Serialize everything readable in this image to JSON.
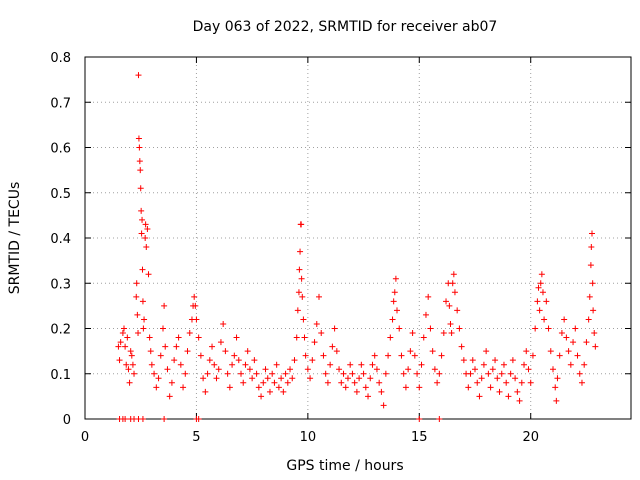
{
  "chart_data": {
    "type": "scatter",
    "title": "Day 063 of 2022, SRMTID for receiver ab07",
    "xlabel": "GPS time / hours",
    "ylabel": "SRMTID / TECUs",
    "xlim": [
      0,
      24.5
    ],
    "ylim": [
      0,
      0.8
    ],
    "xticks": [
      0,
      5,
      10,
      15,
      20
    ],
    "xtick_labels": [
      "0",
      "5",
      "10",
      "15",
      "20"
    ],
    "yticks": [
      0,
      0.1,
      0.2,
      0.3,
      0.4,
      0.5,
      0.6,
      0.7,
      0.8
    ],
    "ytick_labels": [
      "0",
      "0.1",
      "0.2",
      "0.3",
      "0.4",
      "0.5",
      "0.6",
      "0.7",
      "0.8"
    ],
    "grid": true,
    "marker": "+",
    "series": [
      {
        "name": "SRMTID",
        "color": "#ff0000",
        "points": [
          [
            1.55,
            0.0
          ],
          [
            1.7,
            0.0
          ],
          [
            1.8,
            0.0
          ],
          [
            2.05,
            0.0
          ],
          [
            2.2,
            0.0
          ],
          [
            2.4,
            0.0
          ],
          [
            2.6,
            0.0
          ],
          [
            3.55,
            0.0
          ],
          [
            5.0,
            0.0
          ],
          [
            5.1,
            0.0
          ],
          [
            15.0,
            0.0
          ],
          [
            15.9,
            0.0
          ],
          [
            1.5,
            0.16
          ],
          [
            1.55,
            0.13
          ],
          [
            1.6,
            0.17
          ],
          [
            1.7,
            0.19
          ],
          [
            1.75,
            0.2
          ],
          [
            1.8,
            0.16
          ],
          [
            1.85,
            0.12
          ],
          [
            1.9,
            0.18
          ],
          [
            1.95,
            0.11
          ],
          [
            2.0,
            0.08
          ],
          [
            2.05,
            0.15
          ],
          [
            2.1,
            0.14
          ],
          [
            2.15,
            0.12
          ],
          [
            2.2,
            0.1
          ],
          [
            2.3,
            0.27
          ],
          [
            2.32,
            0.3
          ],
          [
            2.35,
            0.23
          ],
          [
            2.38,
            0.19
          ],
          [
            2.4,
            0.76
          ],
          [
            2.42,
            0.62
          ],
          [
            2.44,
            0.6
          ],
          [
            2.46,
            0.57
          ],
          [
            2.48,
            0.55
          ],
          [
            2.5,
            0.51
          ],
          [
            2.52,
            0.46
          ],
          [
            2.54,
            0.41
          ],
          [
            2.56,
            0.44
          ],
          [
            2.58,
            0.33
          ],
          [
            2.6,
            0.26
          ],
          [
            2.62,
            0.2
          ],
          [
            2.65,
            0.22
          ],
          [
            2.7,
            0.4
          ],
          [
            2.72,
            0.43
          ],
          [
            2.75,
            0.38
          ],
          [
            2.8,
            0.42
          ],
          [
            2.85,
            0.32
          ],
          [
            2.9,
            0.18
          ],
          [
            2.95,
            0.15
          ],
          [
            3.0,
            0.12
          ],
          [
            3.1,
            0.1
          ],
          [
            3.2,
            0.07
          ],
          [
            3.3,
            0.09
          ],
          [
            3.4,
            0.14
          ],
          [
            3.5,
            0.2
          ],
          [
            3.55,
            0.25
          ],
          [
            3.6,
            0.16
          ],
          [
            3.7,
            0.11
          ],
          [
            3.8,
            0.05
          ],
          [
            3.9,
            0.08
          ],
          [
            4.0,
            0.13
          ],
          [
            4.1,
            0.16
          ],
          [
            4.2,
            0.18
          ],
          [
            4.3,
            0.12
          ],
          [
            4.4,
            0.07
          ],
          [
            4.5,
            0.1
          ],
          [
            4.6,
            0.15
          ],
          [
            4.7,
            0.19
          ],
          [
            4.8,
            0.22
          ],
          [
            4.85,
            0.25
          ],
          [
            4.9,
            0.27
          ],
          [
            4.95,
            0.25
          ],
          [
            5.0,
            0.22
          ],
          [
            5.1,
            0.18
          ],
          [
            5.2,
            0.14
          ],
          [
            5.3,
            0.09
          ],
          [
            5.4,
            0.06
          ],
          [
            5.5,
            0.1
          ],
          [
            5.6,
            0.13
          ],
          [
            5.7,
            0.16
          ],
          [
            5.8,
            0.12
          ],
          [
            5.9,
            0.09
          ],
          [
            6.0,
            0.11
          ],
          [
            6.1,
            0.17
          ],
          [
            6.2,
            0.21
          ],
          [
            6.3,
            0.15
          ],
          [
            6.4,
            0.1
          ],
          [
            6.5,
            0.07
          ],
          [
            6.6,
            0.12
          ],
          [
            6.7,
            0.14
          ],
          [
            6.8,
            0.18
          ],
          [
            6.9,
            0.13
          ],
          [
            7.0,
            0.1
          ],
          [
            7.1,
            0.08
          ],
          [
            7.2,
            0.12
          ],
          [
            7.3,
            0.15
          ],
          [
            7.4,
            0.11
          ],
          [
            7.5,
            0.09
          ],
          [
            7.6,
            0.13
          ],
          [
            7.7,
            0.1
          ],
          [
            7.8,
            0.07
          ],
          [
            7.9,
            0.05
          ],
          [
            8.0,
            0.08
          ],
          [
            8.1,
            0.11
          ],
          [
            8.2,
            0.09
          ],
          [
            8.3,
            0.06
          ],
          [
            8.4,
            0.1
          ],
          [
            8.5,
            0.08
          ],
          [
            8.6,
            0.12
          ],
          [
            8.7,
            0.07
          ],
          [
            8.8,
            0.09
          ],
          [
            8.9,
            0.06
          ],
          [
            9.0,
            0.1
          ],
          [
            9.1,
            0.08
          ],
          [
            9.2,
            0.11
          ],
          [
            9.3,
            0.09
          ],
          [
            9.4,
            0.13
          ],
          [
            9.5,
            0.18
          ],
          [
            9.55,
            0.24
          ],
          [
            9.6,
            0.28
          ],
          [
            9.62,
            0.33
          ],
          [
            9.65,
            0.37
          ],
          [
            9.68,
            0.43
          ],
          [
            9.7,
            0.43
          ],
          [
            9.72,
            0.31
          ],
          [
            9.75,
            0.27
          ],
          [
            9.8,
            0.22
          ],
          [
            9.85,
            0.18
          ],
          [
            9.9,
            0.14
          ],
          [
            10.0,
            0.11
          ],
          [
            10.1,
            0.09
          ],
          [
            10.2,
            0.13
          ],
          [
            10.3,
            0.17
          ],
          [
            10.4,
            0.21
          ],
          [
            10.5,
            0.27
          ],
          [
            10.6,
            0.19
          ],
          [
            10.7,
            0.14
          ],
          [
            10.8,
            0.1
          ],
          [
            10.9,
            0.08
          ],
          [
            11.0,
            0.12
          ],
          [
            11.1,
            0.16
          ],
          [
            11.2,
            0.2
          ],
          [
            11.3,
            0.15
          ],
          [
            11.4,
            0.11
          ],
          [
            11.5,
            0.08
          ],
          [
            11.6,
            0.1
          ],
          [
            11.7,
            0.07
          ],
          [
            11.8,
            0.09
          ],
          [
            11.9,
            0.12
          ],
          [
            12.0,
            0.1
          ],
          [
            12.1,
            0.08
          ],
          [
            12.2,
            0.06
          ],
          [
            12.3,
            0.09
          ],
          [
            12.4,
            0.12
          ],
          [
            12.5,
            0.1
          ],
          [
            12.6,
            0.07
          ],
          [
            12.7,
            0.05
          ],
          [
            12.8,
            0.09
          ],
          [
            12.9,
            0.12
          ],
          [
            13.0,
            0.14
          ],
          [
            13.1,
            0.11
          ],
          [
            13.2,
            0.08
          ],
          [
            13.3,
            0.06
          ],
          [
            13.4,
            0.03
          ],
          [
            13.5,
            0.1
          ],
          [
            13.6,
            0.14
          ],
          [
            13.7,
            0.18
          ],
          [
            13.8,
            0.22
          ],
          [
            13.85,
            0.26
          ],
          [
            13.9,
            0.28
          ],
          [
            13.95,
            0.31
          ],
          [
            14.0,
            0.24
          ],
          [
            14.1,
            0.2
          ],
          [
            14.2,
            0.14
          ],
          [
            14.3,
            0.1
          ],
          [
            14.4,
            0.07
          ],
          [
            14.5,
            0.11
          ],
          [
            14.6,
            0.15
          ],
          [
            14.7,
            0.19
          ],
          [
            14.8,
            0.14
          ],
          [
            14.9,
            0.1
          ],
          [
            15.0,
            0.07
          ],
          [
            15.1,
            0.12
          ],
          [
            15.2,
            0.18
          ],
          [
            15.3,
            0.23
          ],
          [
            15.4,
            0.27
          ],
          [
            15.5,
            0.2
          ],
          [
            15.6,
            0.15
          ],
          [
            15.7,
            0.11
          ],
          [
            15.8,
            0.08
          ],
          [
            15.9,
            0.1
          ],
          [
            16.0,
            0.14
          ],
          [
            16.1,
            0.19
          ],
          [
            16.2,
            0.26
          ],
          [
            16.3,
            0.3
          ],
          [
            16.35,
            0.25
          ],
          [
            16.4,
            0.21
          ],
          [
            16.45,
            0.19
          ],
          [
            16.5,
            0.3
          ],
          [
            16.55,
            0.32
          ],
          [
            16.6,
            0.28
          ],
          [
            16.7,
            0.24
          ],
          [
            16.8,
            0.2
          ],
          [
            16.9,
            0.16
          ],
          [
            17.0,
            0.13
          ],
          [
            17.1,
            0.1
          ],
          [
            17.2,
            0.07
          ],
          [
            17.3,
            0.1
          ],
          [
            17.4,
            0.13
          ],
          [
            17.5,
            0.11
          ],
          [
            17.6,
            0.08
          ],
          [
            17.7,
            0.05
          ],
          [
            17.8,
            0.09
          ],
          [
            17.9,
            0.12
          ],
          [
            18.0,
            0.15
          ],
          [
            18.1,
            0.1
          ],
          [
            18.2,
            0.07
          ],
          [
            18.3,
            0.11
          ],
          [
            18.4,
            0.13
          ],
          [
            18.5,
            0.09
          ],
          [
            18.6,
            0.06
          ],
          [
            18.7,
            0.1
          ],
          [
            18.8,
            0.12
          ],
          [
            18.9,
            0.08
          ],
          [
            19.0,
            0.05
          ],
          [
            19.1,
            0.1
          ],
          [
            19.2,
            0.13
          ],
          [
            19.3,
            0.09
          ],
          [
            19.4,
            0.06
          ],
          [
            19.5,
            0.04
          ],
          [
            19.6,
            0.08
          ],
          [
            19.7,
            0.12
          ],
          [
            19.8,
            0.15
          ],
          [
            19.9,
            0.11
          ],
          [
            20.0,
            0.08
          ],
          [
            20.1,
            0.14
          ],
          [
            20.2,
            0.2
          ],
          [
            20.3,
            0.26
          ],
          [
            20.35,
            0.29
          ],
          [
            20.4,
            0.24
          ],
          [
            20.45,
            0.3
          ],
          [
            20.5,
            0.32
          ],
          [
            20.55,
            0.28
          ],
          [
            20.6,
            0.22
          ],
          [
            20.7,
            0.26
          ],
          [
            20.8,
            0.2
          ],
          [
            20.9,
            0.15
          ],
          [
            21.0,
            0.11
          ],
          [
            21.1,
            0.07
          ],
          [
            21.15,
            0.04
          ],
          [
            21.2,
            0.09
          ],
          [
            21.3,
            0.14
          ],
          [
            21.4,
            0.19
          ],
          [
            21.5,
            0.22
          ],
          [
            21.6,
            0.18
          ],
          [
            21.7,
            0.15
          ],
          [
            21.8,
            0.12
          ],
          [
            21.9,
            0.17
          ],
          [
            22.0,
            0.2
          ],
          [
            22.1,
            0.14
          ],
          [
            22.2,
            0.1
          ],
          [
            22.3,
            0.08
          ],
          [
            22.4,
            0.12
          ],
          [
            22.5,
            0.17
          ],
          [
            22.6,
            0.22
          ],
          [
            22.65,
            0.27
          ],
          [
            22.7,
            0.34
          ],
          [
            22.72,
            0.38
          ],
          [
            22.75,
            0.41
          ],
          [
            22.78,
            0.3
          ],
          [
            22.8,
            0.24
          ],
          [
            22.85,
            0.19
          ],
          [
            22.9,
            0.16
          ]
        ]
      }
    ]
  }
}
